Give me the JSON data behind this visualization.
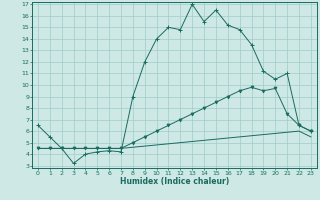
{
  "title": "",
  "xlabel": "Humidex (Indice chaleur)",
  "xlim": [
    -0.5,
    23.5
  ],
  "ylim": [
    2.8,
    17.2
  ],
  "yticks": [
    3,
    4,
    5,
    6,
    7,
    8,
    9,
    10,
    11,
    12,
    13,
    14,
    15,
    16,
    17
  ],
  "xticks": [
    0,
    1,
    2,
    3,
    4,
    5,
    6,
    7,
    8,
    9,
    10,
    11,
    12,
    13,
    14,
    15,
    16,
    17,
    18,
    19,
    20,
    21,
    22,
    23
  ],
  "bg_color": "#cde8e5",
  "grid_color": "#a0ccc8",
  "line_color": "#1a6b60",
  "line1_x": [
    0,
    1,
    2,
    3,
    4,
    5,
    6,
    7,
    8,
    9,
    10,
    11,
    12,
    13,
    14,
    15,
    16,
    17,
    18,
    19,
    20,
    21,
    22,
    23
  ],
  "line1_y": [
    6.5,
    5.5,
    4.5,
    3.2,
    4.0,
    4.2,
    4.3,
    4.2,
    9.0,
    12.0,
    14.0,
    15.0,
    14.8,
    17.0,
    15.5,
    16.5,
    15.2,
    14.8,
    13.5,
    11.2,
    10.5,
    11.0,
    6.5,
    6.0
  ],
  "line2_x": [
    0,
    1,
    2,
    3,
    4,
    5,
    6,
    7,
    8,
    9,
    10,
    11,
    12,
    13,
    14,
    15,
    16,
    17,
    18,
    19,
    20,
    21,
    22,
    23
  ],
  "line2_y": [
    4.5,
    4.5,
    4.5,
    4.5,
    4.5,
    4.5,
    4.5,
    4.5,
    5.0,
    5.5,
    6.0,
    6.5,
    7.0,
    7.5,
    8.0,
    8.5,
    9.0,
    9.5,
    9.8,
    9.5,
    9.7,
    7.5,
    6.5,
    6.0
  ],
  "line3_x": [
    0,
    1,
    2,
    3,
    4,
    5,
    6,
    7,
    8,
    9,
    10,
    11,
    12,
    13,
    14,
    15,
    16,
    17,
    18,
    19,
    20,
    21,
    22,
    23
  ],
  "line3_y": [
    4.5,
    4.5,
    4.5,
    4.5,
    4.5,
    4.5,
    4.5,
    4.5,
    4.6,
    4.7,
    4.8,
    4.9,
    5.0,
    5.1,
    5.2,
    5.3,
    5.4,
    5.5,
    5.6,
    5.7,
    5.8,
    5.9,
    6.0,
    5.5
  ]
}
